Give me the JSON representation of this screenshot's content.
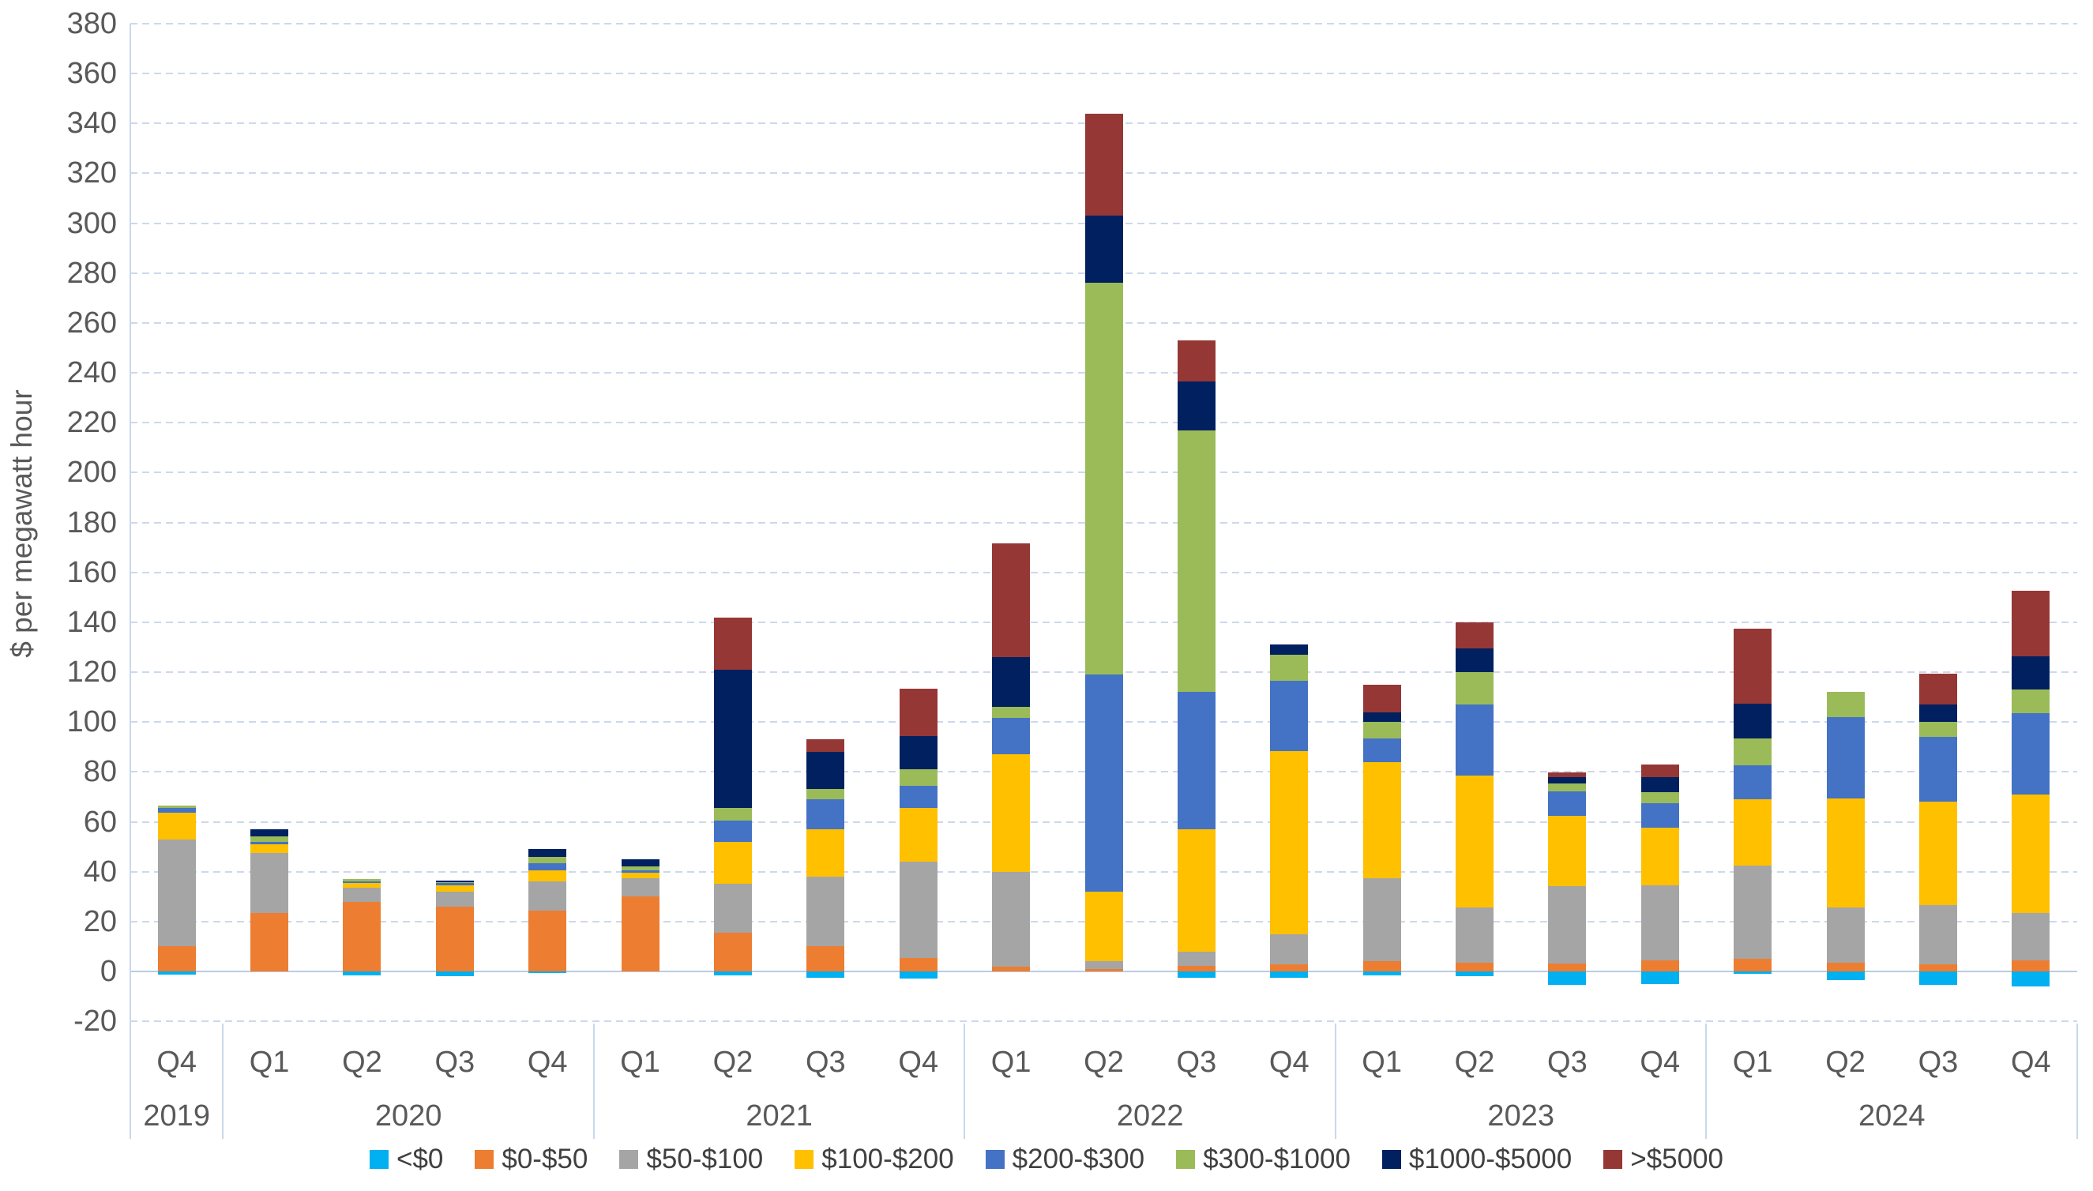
{
  "chart_data": {
    "type": "bar",
    "subtype": "stacked-column-with-negative",
    "title": "",
    "ylabel": "$ per megawatt hour",
    "xlabel": "",
    "ylim": [
      -20,
      380
    ],
    "ytick_step": 20,
    "grid": "horizontal-dashed",
    "legend_position": "bottom",
    "groups": [
      {
        "year": "2019",
        "quarters": [
          "Q4"
        ]
      },
      {
        "year": "2020",
        "quarters": [
          "Q1",
          "Q2",
          "Q3",
          "Q4"
        ]
      },
      {
        "year": "2021",
        "quarters": [
          "Q1",
          "Q2",
          "Q3",
          "Q4"
        ]
      },
      {
        "year": "2022",
        "quarters": [
          "Q1",
          "Q2",
          "Q3",
          "Q4"
        ]
      },
      {
        "year": "2023",
        "quarters": [
          "Q1",
          "Q2",
          "Q3",
          "Q4"
        ]
      },
      {
        "year": "2024",
        "quarters": [
          "Q1",
          "Q2",
          "Q3",
          "Q4"
        ]
      }
    ],
    "categories": [
      "Q4 2019",
      "Q1 2020",
      "Q2 2020",
      "Q3 2020",
      "Q4 2020",
      "Q1 2021",
      "Q2 2021",
      "Q3 2021",
      "Q4 2021",
      "Q1 2022",
      "Q2 2022",
      "Q3 2022",
      "Q4 2022",
      "Q1 2023",
      "Q2 2023",
      "Q3 2023",
      "Q4 2023",
      "Q1 2024",
      "Q2 2024",
      "Q3 2024",
      "Q4 2024"
    ],
    "series": [
      {
        "name": "<$0",
        "color": "#00B0F0",
        "values": [
          -1.3,
          0,
          -1.5,
          -2,
          -0.5,
          0,
          -1.5,
          -2.5,
          -3,
          0,
          0,
          -2.5,
          -2.5,
          -1.5,
          -2,
          -5.5,
          -5,
          -1,
          -3.5,
          -5.5,
          -6
        ]
      },
      {
        "name": "$0-$50",
        "color": "#ED7D31",
        "values": [
          10,
          23.5,
          28,
          26,
          24.5,
          30,
          15.5,
          10,
          5.5,
          2,
          1,
          2.3,
          3,
          4,
          3.5,
          3.3,
          4.5,
          5,
          3.5,
          3,
          4.5
        ]
      },
      {
        "name": "$50-$100",
        "color": "#A5A5A5",
        "values": [
          43,
          24,
          5.5,
          6,
          11.5,
          7.5,
          19.5,
          28,
          38.5,
          38,
          3,
          5.7,
          12,
          33.5,
          22,
          31,
          30,
          37.5,
          22,
          23.5,
          19
        ]
      },
      {
        "name": "$100-$200",
        "color": "#FFC000",
        "values": [
          10.5,
          3.5,
          2,
          2.5,
          4.5,
          2,
          17,
          19,
          21.5,
          47,
          28,
          49,
          73.5,
          46.5,
          53,
          28,
          23,
          26.5,
          44,
          41.5,
          47.5
        ]
      },
      {
        "name": "$200-$300",
        "color": "#4472C4",
        "values": [
          2,
          1,
          0.7,
          1,
          3,
          1,
          8.5,
          12,
          9,
          14.5,
          87,
          55,
          28,
          9.5,
          28.5,
          10,
          10,
          13.5,
          32.5,
          26,
          32.5
        ]
      },
      {
        "name": "$300-$1000",
        "color": "#9BBB59",
        "values": [
          1,
          2,
          0.8,
          0.5,
          2.5,
          1.5,
          5,
          4,
          6.5,
          4.5,
          157,
          105,
          10.5,
          6.5,
          13,
          3,
          4.5,
          11,
          10,
          6,
          9.5
        ]
      },
      {
        "name": "$1000-$5000",
        "color": "#002060",
        "values": [
          0,
          3,
          0,
          0.3,
          3,
          3,
          55.5,
          15,
          13.5,
          20,
          27,
          19.5,
          4,
          4,
          9.5,
          2.5,
          6,
          14,
          0,
          7,
          13.5
        ]
      },
      {
        "name": ">$5000",
        "color": "#953735",
        "values": [
          0,
          0,
          0,
          0,
          0,
          0,
          21,
          5,
          19,
          45.5,
          41,
          16.5,
          0,
          11,
          10.5,
          2,
          5,
          30,
          0,
          12.5,
          26
        ]
      }
    ]
  }
}
